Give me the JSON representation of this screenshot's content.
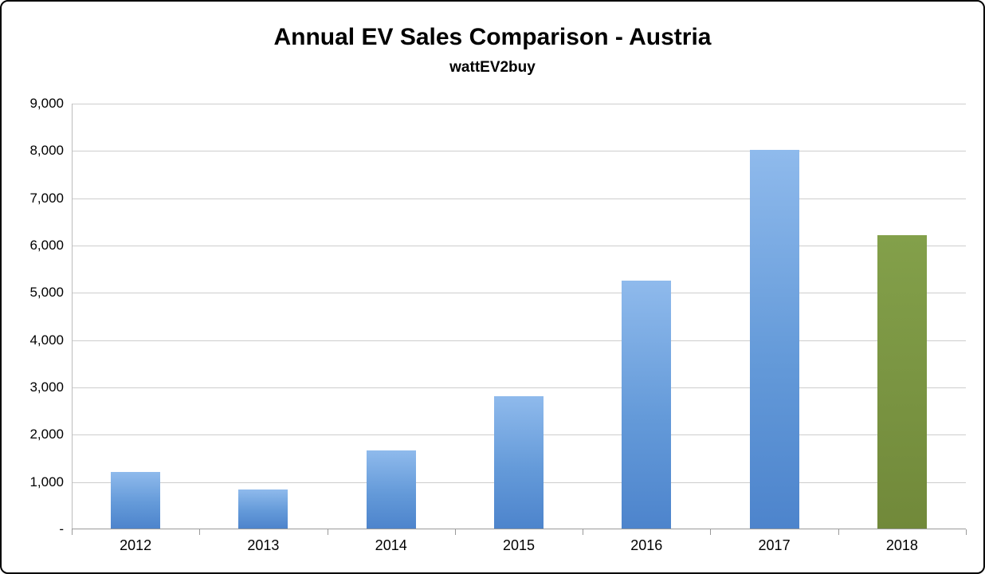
{
  "chart_data": {
    "type": "bar",
    "title": "Annual EV Sales Comparison - Austria",
    "subtitle": "wattEV2buy",
    "categories": [
      "2012",
      "2013",
      "2014",
      "2015",
      "2016",
      "2017",
      "2018"
    ],
    "values": [
      1200,
      820,
      1650,
      2800,
      5250,
      8000,
      6200
    ],
    "series_colors": [
      "blue",
      "blue",
      "blue",
      "blue",
      "blue",
      "blue",
      "green"
    ],
    "xlabel": "",
    "ylabel": "",
    "ylim": [
      0,
      9000
    ],
    "y_tick_interval": 1000,
    "y_tick_labels": [
      "-",
      "1,000",
      "2,000",
      "3,000",
      "4,000",
      "5,000",
      "6,000",
      "7,000",
      "8,000",
      "9,000"
    ],
    "grid": true,
    "legend": false,
    "colors": {
      "bar_blue_top": "#8fbaec",
      "bar_blue_mid": "#649ad9",
      "bar_blue_bottom": "#4d84cc",
      "bar_green_top": "#83a04a",
      "bar_green_bottom": "#71893a",
      "gridline": "#cdcdcd",
      "axis": "#9a9a9a",
      "background": "#ffffff",
      "border": "#000000"
    }
  }
}
